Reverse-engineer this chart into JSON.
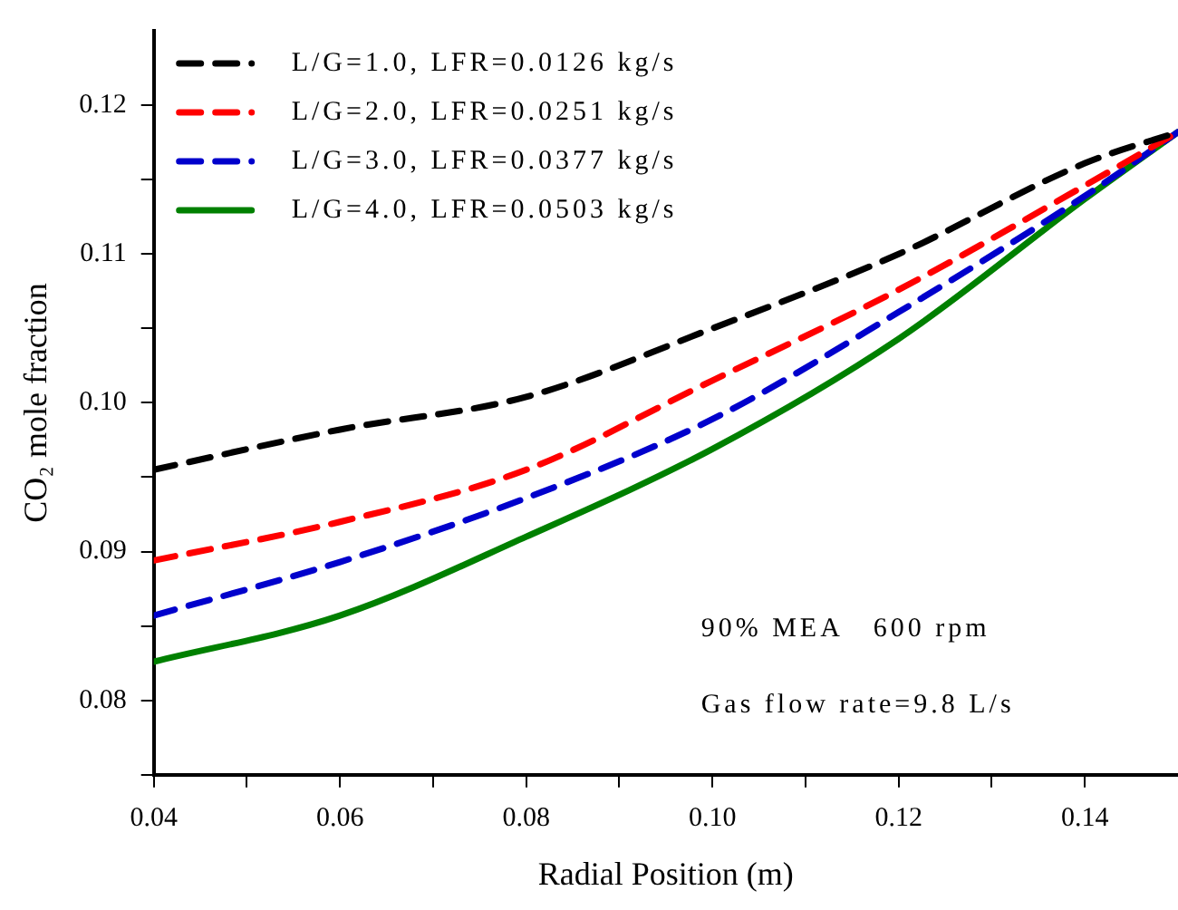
{
  "chart_data": {
    "type": "line",
    "xlabel": "Radial Position (m)",
    "ylabel": "CO₂ mole fraction",
    "x": [
      0.04,
      0.06,
      0.08,
      0.1,
      0.12,
      0.14,
      0.15
    ],
    "series": [
      {
        "name": "L/G=1.0, LFR=0.0126 kg/s",
        "color": "#000000",
        "line_style": "dashed",
        "values": [
          0.0955,
          0.0982,
          0.1004,
          0.105,
          0.11,
          0.1161,
          0.1182
        ]
      },
      {
        "name": "L/G=2.0, LFR=0.0251 kg/s",
        "color": "#ff0000",
        "line_style": "dashed",
        "values": [
          0.0894,
          0.092,
          0.0955,
          0.1015,
          0.1076,
          0.1146,
          0.1182
        ]
      },
      {
        "name": "L/G=3.0, LFR=0.0377 kg/s",
        "color": "#0000cc",
        "line_style": "dashed",
        "values": [
          0.0857,
          0.0893,
          0.0936,
          0.0989,
          0.1061,
          0.1139,
          0.1182
        ]
      },
      {
        "name": "L/G=4.0, LFR=0.0503 kg/s",
        "color": "#008000",
        "line_style": "solid",
        "values": [
          0.0826,
          0.0857,
          0.091,
          0.0969,
          0.1043,
          0.1137,
          0.1182
        ]
      }
    ],
    "xlim": [
      0.04,
      0.15
    ],
    "xticks": [
      {
        "value": 0.04,
        "label": "0.04"
      },
      {
        "value": 0.05,
        "label": null
      },
      {
        "value": 0.06,
        "label": "0.06"
      },
      {
        "value": 0.07,
        "label": null
      },
      {
        "value": 0.08,
        "label": "0.08"
      },
      {
        "value": 0.09,
        "label": null
      },
      {
        "value": 0.1,
        "label": "0.10"
      },
      {
        "value": 0.11,
        "label": null
      },
      {
        "value": 0.12,
        "label": "0.12"
      },
      {
        "value": 0.13,
        "label": null
      },
      {
        "value": 0.14,
        "label": "0.14"
      }
    ],
    "ylim": [
      0.075,
      0.125
    ],
    "yticks": [
      {
        "value": 0.075,
        "label": null
      },
      {
        "value": 0.08,
        "label": "0.08"
      },
      {
        "value": 0.085,
        "label": null
      },
      {
        "value": 0.09,
        "label": "0.09"
      },
      {
        "value": 0.095,
        "label": null
      },
      {
        "value": 0.1,
        "label": "0.10"
      },
      {
        "value": 0.105,
        "label": null
      },
      {
        "value": 0.11,
        "label": "0.11"
      },
      {
        "value": 0.115,
        "label": null
      },
      {
        "value": 0.12,
        "label": "0.12"
      }
    ],
    "annotations": [
      "90% MEA   600 rpm",
      "Gas flow rate=9.8 L/s"
    ],
    "legend": "top left",
    "grid": false,
    "marker": "none"
  }
}
